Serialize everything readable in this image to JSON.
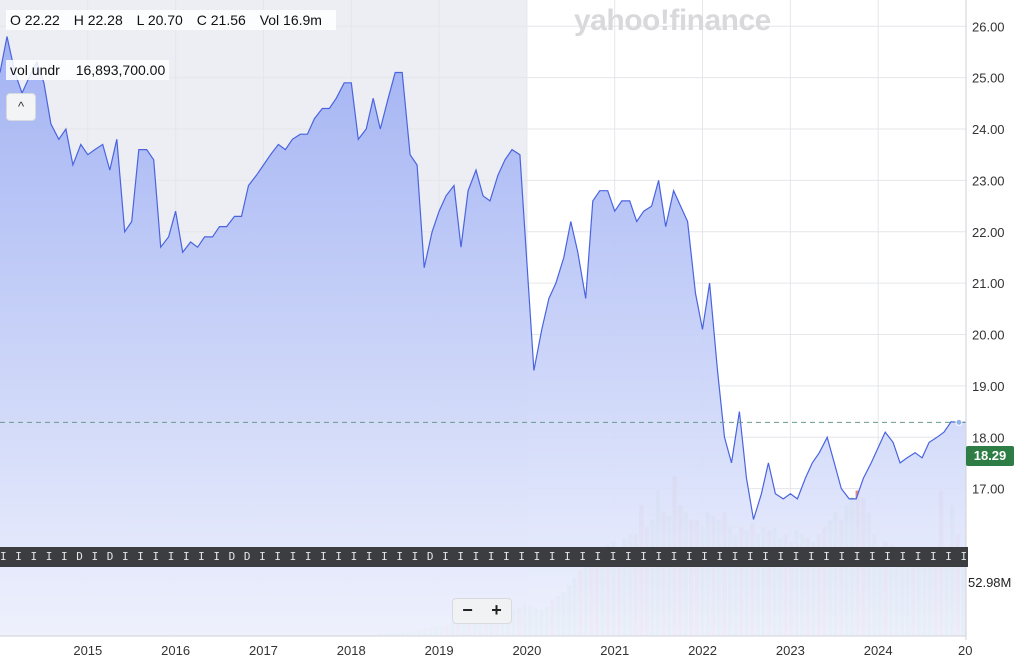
{
  "ohlc": {
    "open": "O 22.22",
    "high": "H 22.28",
    "low": "L 20.70",
    "close": "C 21.56",
    "volume": "Vol 16.9m"
  },
  "volume_readout": {
    "label": "vol undr",
    "value": "16,893,700.00"
  },
  "collapse_glyph": "^",
  "watermark": "yahoo!finance",
  "current_price_label": "18.29",
  "current_volume_label": "52.98M",
  "zoom": {
    "minus": "−",
    "plus": "+"
  },
  "event_strip": "I I  I I  I D I D I  I I  I I  I I  D D I  I I  I I  I I  I I  I I D I  I I  I I  I I  I I  I I  I I  I I  I I  I I  I I  I I  I I  I I  I I  I I  I I  I I  I I  I I  I I  I I  I I  I I  I I  I I  I I  I I  I I  I I  I I  I I  I D D",
  "colors": {
    "price_line": "#4a64e0",
    "area_top": "#9fb0f3",
    "area_bottom": "#eef1fd",
    "highlight_band": "#eceef3",
    "volume_up": "#8fcf91",
    "volume_down": "#e28a86",
    "grid": "#e4e6ea"
  },
  "chart_data": {
    "type": "line",
    "x_ticks": [
      "2015",
      "2016",
      "2017",
      "2018",
      "2019",
      "2020",
      "2021",
      "2022",
      "2023",
      "2024",
      "20"
    ],
    "y_ticks": [
      "26.00",
      "25.00",
      "24.00",
      "23.00",
      "22.00",
      "21.00",
      "20.00",
      "19.00",
      "18.00",
      "17.00"
    ],
    "ylim": [
      16.0,
      26.2
    ],
    "xlim": [
      2014.0,
      2025.0
    ],
    "highlight_range": [
      2014.0,
      2020.0
    ],
    "reference_line": 18.29,
    "series": [
      {
        "x": [
          2014.0,
          2014.08,
          2014.17,
          2014.25,
          2014.33,
          2014.42,
          2014.5,
          2014.58,
          2014.67,
          2014.75,
          2014.83,
          2014.92,
          2015.0,
          2015.08,
          2015.17,
          2015.25,
          2015.33,
          2015.42,
          2015.5,
          2015.58,
          2015.67,
          2015.75,
          2015.83,
          2015.92,
          2016.0,
          2016.08,
          2016.17,
          2016.25,
          2016.33,
          2016.42,
          2016.5,
          2016.58,
          2016.67,
          2016.75,
          2016.83,
          2016.92,
          2017.0,
          2017.08,
          2017.17,
          2017.25,
          2017.33,
          2017.42,
          2017.5,
          2017.58,
          2017.67,
          2017.75,
          2017.83,
          2017.92,
          2018.0,
          2018.08,
          2018.17,
          2018.25,
          2018.33,
          2018.42,
          2018.5,
          2018.58,
          2018.67,
          2018.75,
          2018.83,
          2018.92,
          2019.0,
          2019.08,
          2019.17,
          2019.25,
          2019.33,
          2019.42,
          2019.5,
          2019.58,
          2019.67,
          2019.75,
          2019.83,
          2019.92,
          2020.0,
          2020.08,
          2020.17,
          2020.25,
          2020.33,
          2020.42,
          2020.5,
          2020.58,
          2020.67,
          2020.75,
          2020.83,
          2020.92,
          2021.0,
          2021.08,
          2021.17,
          2021.25,
          2021.33,
          2021.42,
          2021.5,
          2021.58,
          2021.67,
          2021.75,
          2021.83,
          2021.92,
          2022.0,
          2022.08,
          2022.17,
          2022.25,
          2022.33,
          2022.42,
          2022.5,
          2022.58,
          2022.67,
          2022.75,
          2022.83,
          2022.92,
          2023.0,
          2023.08,
          2023.17,
          2023.25,
          2023.33,
          2023.42,
          2023.5,
          2023.58,
          2023.67,
          2023.75,
          2023.83,
          2023.92,
          2024.0,
          2024.08,
          2024.17,
          2024.25,
          2024.33,
          2024.42,
          2024.5,
          2024.58,
          2024.67,
          2024.75,
          2024.83,
          2024.92,
          2025.0
        ],
        "y": [
          25.1,
          25.8,
          25.1,
          24.7,
          25.0,
          25.3,
          24.9,
          24.1,
          23.8,
          24.0,
          23.3,
          23.7,
          23.5,
          23.6,
          23.7,
          23.2,
          23.8,
          22.0,
          22.2,
          23.6,
          23.6,
          23.4,
          21.7,
          21.9,
          22.4,
          21.6,
          21.8,
          21.7,
          21.9,
          21.9,
          22.1,
          22.1,
          22.3,
          22.3,
          22.9,
          23.1,
          23.3,
          23.5,
          23.7,
          23.6,
          23.8,
          23.9,
          23.9,
          24.2,
          24.4,
          24.4,
          24.6,
          24.9,
          24.9,
          23.8,
          24.0,
          24.6,
          24.0,
          24.6,
          25.1,
          25.1,
          23.5,
          23.3,
          21.3,
          22.0,
          22.4,
          22.7,
          22.9,
          21.7,
          22.8,
          23.2,
          22.7,
          22.6,
          23.1,
          23.4,
          23.6,
          23.5,
          21.4,
          19.3,
          20.1,
          20.7,
          21.0,
          21.5,
          22.2,
          21.6,
          20.7,
          22.6,
          22.8,
          22.8,
          22.4,
          22.6,
          22.6,
          22.2,
          22.4,
          22.5,
          23.0,
          22.1,
          22.8,
          22.5,
          22.2,
          20.8,
          20.1,
          21.0,
          19.3,
          18.0,
          17.5,
          18.5,
          17.2,
          16.4,
          16.9,
          17.5,
          16.9,
          16.8,
          16.9,
          16.8,
          17.2,
          17.5,
          17.7,
          18.0,
          17.5,
          17.0,
          16.8,
          16.8,
          17.2,
          17.5,
          17.8,
          18.1,
          17.9,
          17.5,
          17.6,
          17.7,
          17.6,
          17.9,
          18.0,
          18.1,
          18.3,
          18.29,
          18.29
        ]
      }
    ],
    "volume": {
      "x_start": 2018.3,
      "x_end": 2025.0,
      "values": [
        0.3,
        0.3,
        0.4,
        0.4,
        0.5,
        0.6,
        0.7,
        0.8,
        1.0,
        1.1,
        1.2,
        1.3,
        1.5,
        1.8,
        2.0,
        2.2,
        2.5,
        3.0,
        2.5,
        3.5,
        3.0,
        4.5,
        3.8,
        3.4,
        3.6,
        4.0,
        4.5,
        4.3,
        3.8,
        3.6,
        4.0,
        5.0,
        5.5,
        6.0,
        7.0,
        8.0,
        9.0,
        10.0,
        11.0,
        10.5,
        12.0,
        12.5,
        13.0,
        12.0,
        13.5,
        14.0,
        14.0,
        18.0,
        15.0,
        16.0,
        20.0,
        17.0,
        16.5,
        22.0,
        18.0,
        17.0,
        16.0,
        16.0,
        15.0,
        17.0,
        16.5,
        16.0,
        17.0,
        15.0,
        14.0,
        15.0,
        14.5,
        15.5,
        14.0,
        15.0,
        14.5,
        15.0,
        13.5,
        14.0,
        13.0,
        14.5,
        14.0,
        13.5,
        13.0,
        14.0,
        15.0,
        16.0,
        17.0,
        16.0,
        18.0,
        19.0,
        20.0,
        19.0,
        17.0,
        14.0,
        12.0,
        13.0,
        12.5,
        12.0,
        11.0,
        12.0,
        11.5,
        11.0,
        10.0,
        12.0,
        11.0,
        20.0,
        12.0,
        18.0,
        14.0,
        11.0
      ],
      "direction": [
        1,
        1,
        1,
        1,
        1,
        1,
        1,
        1,
        1,
        1,
        1,
        1,
        0,
        1,
        0,
        1,
        0,
        1,
        1,
        0,
        1,
        0,
        1,
        1,
        1,
        0,
        1,
        1,
        1,
        1,
        1,
        0,
        1,
        1,
        1,
        1,
        0,
        1,
        0,
        0,
        1,
        0,
        1,
        0,
        1,
        1,
        0,
        0,
        0,
        1,
        1,
        0,
        1,
        0,
        0,
        1,
        0,
        0,
        1,
        1,
        0,
        1,
        0,
        1,
        1,
        0,
        1,
        0,
        1,
        1,
        0,
        1,
        1,
        0,
        0,
        1,
        1,
        0,
        1,
        0,
        0,
        1,
        1,
        0,
        1,
        1,
        0,
        0,
        1,
        1,
        1,
        0,
        1,
        1,
        1,
        1,
        0,
        1,
        1,
        1,
        0,
        0,
        1,
        1,
        0,
        1
      ]
    }
  }
}
